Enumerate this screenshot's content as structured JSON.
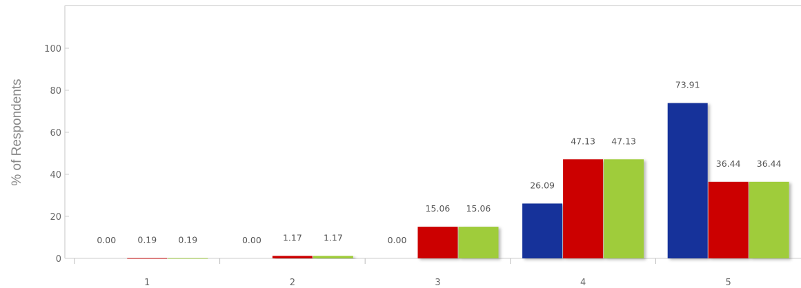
{
  "chart_data": {
    "type": "bar",
    "title": "",
    "xlabel": "",
    "ylabel": "% of Respondents",
    "categories": [
      "1",
      "2",
      "3",
      "4",
      "5"
    ],
    "ylim": [
      0,
      100
    ],
    "yticks": [
      0,
      20,
      40,
      60,
      80,
      100
    ],
    "grid": false,
    "legend": "none",
    "series": [
      {
        "color": "#14309a",
        "values": [
          0.0,
          0.0,
          0.0,
          26.09,
          73.91
        ],
        "labels": [
          "0.00",
          "0.00",
          "0.00",
          "26.09",
          "73.91"
        ]
      },
      {
        "color": "#cc0000",
        "values": [
          0.19,
          1.17,
          15.06,
          47.13,
          36.44
        ],
        "labels": [
          "0.19",
          "1.17",
          "15.06",
          "47.13",
          "36.44"
        ]
      },
      {
        "color": "#9fcc3b",
        "values": [
          0.19,
          1.17,
          15.06,
          47.13,
          36.44
        ],
        "labels": [
          "0.19",
          "1.17",
          "15.06",
          "47.13",
          "36.44"
        ]
      }
    ]
  }
}
